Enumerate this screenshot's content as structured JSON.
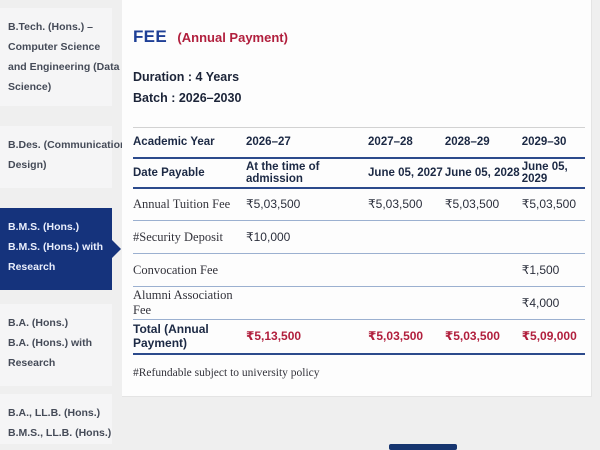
{
  "sidebar": {
    "items": [
      {
        "lines": [
          "B.Tech. (Hons.) –",
          "Computer Science",
          "and Engineering (Data",
          "Science)"
        ],
        "selected": false
      },
      {
        "lines": [
          "B.Des. (Communication",
          "Design)"
        ],
        "selected": false
      },
      {
        "lines": [
          "B.M.S. (Hons.)",
          "B.M.S. (Hons.) with",
          "Research"
        ],
        "selected": true
      },
      {
        "lines": [
          "B.A. (Hons.)",
          "B.A. (Hons.) with",
          "Research"
        ],
        "selected": false
      },
      {
        "lines": [
          "B.A., LL.B. (Hons.)",
          "B.M.S., LL.B. (Hons.)"
        ],
        "selected": false
      }
    ]
  },
  "header": {
    "title": "FEE",
    "subtitle": "(Annual Payment)"
  },
  "meta": {
    "duration": "Duration : 4 Years",
    "batch": "Batch : 2026–2030"
  },
  "table": {
    "header_row": {
      "label": "Academic Year",
      "values": [
        "2026–27",
        "2027–28",
        "2028–29",
        "2029–30"
      ]
    },
    "date_row": {
      "label": "Date Payable",
      "values": [
        "At the time of admission",
        "June 05, 2027",
        "June 05, 2028",
        "June 05, 2029"
      ]
    },
    "rows": [
      {
        "label": "Annual Tuition Fee",
        "values": [
          "₹5,03,500",
          "₹5,03,500",
          "₹5,03,500",
          "₹5,03,500"
        ]
      },
      {
        "label": "#Security Deposit",
        "values": [
          "₹10,000",
          "",
          "",
          ""
        ]
      },
      {
        "label": "Convocation Fee",
        "values": [
          "",
          "",
          "",
          "₹1,500"
        ]
      },
      {
        "label": "Alumni Association Fee",
        "values": [
          "",
          "",
          "",
          "₹4,000"
        ]
      }
    ],
    "total_row": {
      "label": "Total (Annual Payment)",
      "values": [
        "₹5,13,500",
        "₹5,03,500",
        "₹5,03,500",
        "₹5,09,000"
      ]
    },
    "footnote": "#Refundable subject to university policy"
  },
  "colors": {
    "brand_navy": "#15337c",
    "title_blue": "#1e3f96",
    "accent_crimson": "#b11f3d",
    "rule_navy": "#2c4a8c",
    "rule_light_blue": "#9bb0d0"
  }
}
